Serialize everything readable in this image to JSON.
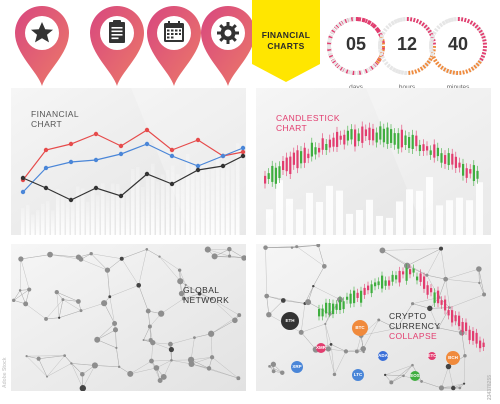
{
  "pins": [
    {
      "icon": "star-icon",
      "gradient": [
        "#d94a84",
        "#e8746c"
      ]
    },
    {
      "icon": "document-icon",
      "gradient": [
        "#d94a84",
        "#e8746c"
      ]
    },
    {
      "icon": "calendar-icon",
      "gradient": [
        "#d94a84",
        "#e8746c"
      ]
    },
    {
      "icon": "gear-icon",
      "gradient": [
        "#d94a84",
        "#e8746c"
      ]
    }
  ],
  "banner": {
    "line1": "FINANCIAL",
    "line2": "CHARTS",
    "color": "#ffe600"
  },
  "timers": [
    {
      "value": "05",
      "caption": "days"
    },
    {
      "value": "12",
      "caption": "hours"
    },
    {
      "value": "40",
      "caption": "minutes"
    }
  ],
  "panels": {
    "financial": {
      "title_line1": "FINANCIAL",
      "title_line2": "CHART"
    },
    "candlestick": {
      "title_line1": "CANDLESTICK",
      "title_line2": "CHART"
    },
    "global": {
      "title_line1": "GLOBAL",
      "title_line2": "NETWORK"
    },
    "crypto": {
      "title_line1": "CRYPTO",
      "title_line2": "CURRENCY",
      "title_line3": "COLLAPSE"
    }
  },
  "coins": {
    "eth": "ETH",
    "btc": "BTC",
    "xrp": "XRP",
    "ltc": "LTC",
    "xmr": "XMR",
    "ada": "ADA",
    "bch": "BCH",
    "eos": "EOS",
    "etc": "ETC"
  },
  "watermark": {
    "id": "234378255",
    "stock": "Adobe Stock"
  },
  "colors": {
    "accent_pink": "#e23d6f",
    "accent_orange": "#f08a3c",
    "candle_green": "#3fae3f",
    "candle_red": "#e23d6f",
    "line_red": "#e64b4b",
    "line_blue": "#4a86d8",
    "line_black": "#333333"
  }
}
